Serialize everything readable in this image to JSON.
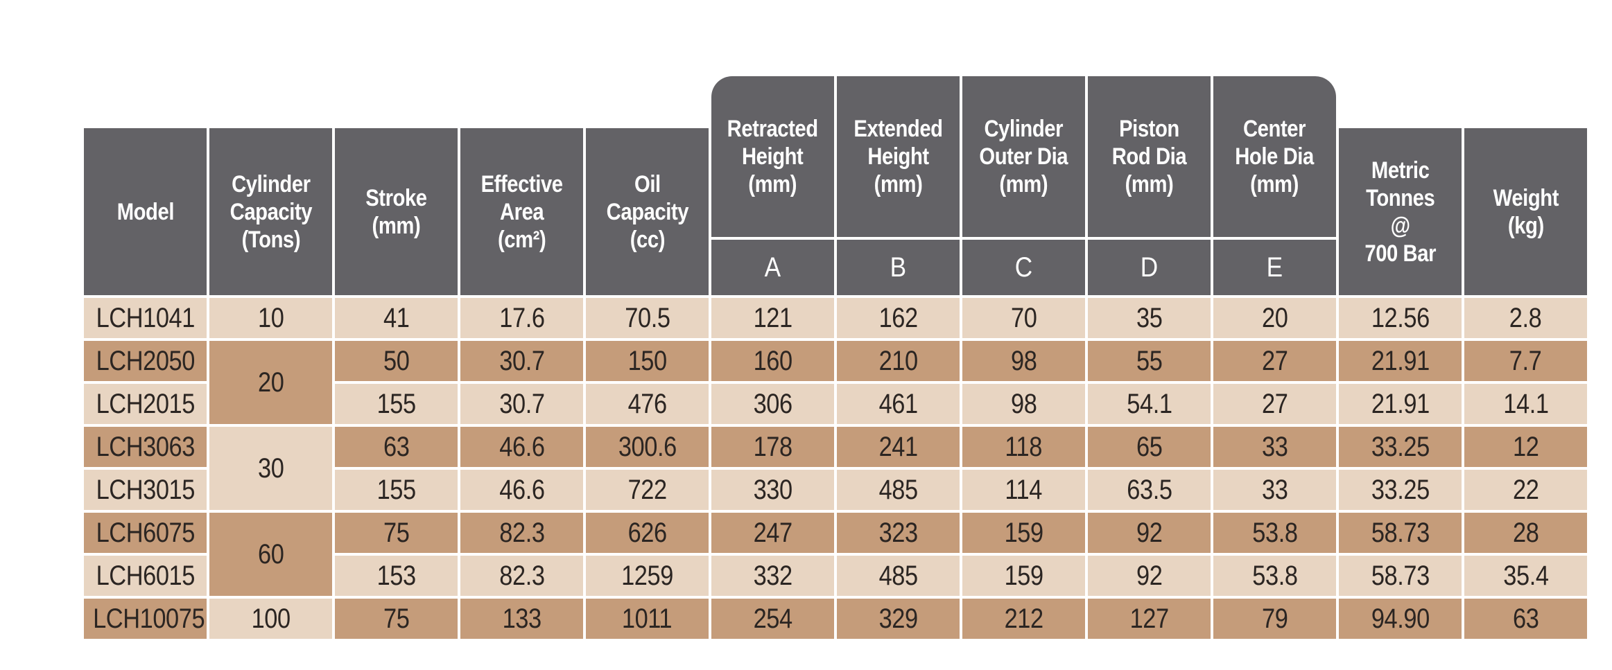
{
  "page": {
    "background": "#ffffff"
  },
  "colors": {
    "header_grey": "#636266",
    "row_light": "#e8d5c2",
    "row_dark": "#c59c7a",
    "grid_white": "#ffffff",
    "text_dark": "#2b2522",
    "header_text": "#ffffff"
  },
  "table": {
    "columns": [
      {
        "id": "model",
        "label": "Model"
      },
      {
        "id": "capacity",
        "label": "Cylinder\nCapacity\n(Tons)"
      },
      {
        "id": "stroke",
        "label": "Stroke\n(mm)"
      },
      {
        "id": "area",
        "label": "Effective\nArea\n(cm²)"
      },
      {
        "id": "oil",
        "label": "Oil\nCapacity\n(cc)"
      },
      {
        "id": "retracted",
        "label": "Retracted\nHeight\n(mm)",
        "sub": "A"
      },
      {
        "id": "extended",
        "label": "Extended\nHeight\n(mm)",
        "sub": "B"
      },
      {
        "id": "cyl_outer",
        "label": "Cylinder\nOuter Dia\n(mm)",
        "sub": "C"
      },
      {
        "id": "piston_rod",
        "label": "Piston\nRod Dia\n(mm)",
        "sub": "D"
      },
      {
        "id": "center_hole",
        "label": "Center\nHole Dia\n(mm)",
        "sub": "E"
      },
      {
        "id": "tonnes",
        "label": "Metric\nTonnes\n@\n700 Bar"
      },
      {
        "id": "weight",
        "label": "Weight\n(kg)"
      }
    ],
    "rows": [
      {
        "model": "LCH1041",
        "capacity": "10",
        "stroke": "41",
        "area": "17.6",
        "oil": "70.5",
        "a": "121",
        "b": "162",
        "c": "70",
        "d": "35",
        "e": "20",
        "tonnes": "12.56",
        "weight": "2.8"
      },
      {
        "model": "LCH2050",
        "capacity": "20",
        "stroke": "50",
        "area": "30.7",
        "oil": "150",
        "a": "160",
        "b": "210",
        "c": "98",
        "d": "55",
        "e": "27",
        "tonnes": "21.91",
        "weight": "7.7"
      },
      {
        "model": "LCH2015",
        "stroke": "155",
        "area": "30.7",
        "oil": "476",
        "a": "306",
        "b": "461",
        "c": "98",
        "d": "54.1",
        "e": "27",
        "tonnes": "21.91",
        "weight": "14.1"
      },
      {
        "model": "LCH3063",
        "capacity": "30",
        "stroke": "63",
        "area": "46.6",
        "oil": "300.6",
        "a": "178",
        "b": "241",
        "c": "118",
        "d": "65",
        "e": "33",
        "tonnes": "33.25",
        "weight": "12"
      },
      {
        "model": "LCH3015",
        "stroke": "155",
        "area": "46.6",
        "oil": "722",
        "a": "330",
        "b": "485",
        "c": "114",
        "d": "63.5",
        "e": "33",
        "tonnes": "33.25",
        "weight": "22"
      },
      {
        "model": "LCH6075",
        "capacity": "60",
        "stroke": "75",
        "area": "82.3",
        "oil": "626",
        "a": "247",
        "b": "323",
        "c": "159",
        "d": "92",
        "e": "53.8",
        "tonnes": "58.73",
        "weight": "28"
      },
      {
        "model": "LCH6015",
        "stroke": "153",
        "area": "82.3",
        "oil": "1259",
        "a": "332",
        "b": "485",
        "c": "159",
        "d": "92",
        "e": "53.8",
        "tonnes": "58.73",
        "weight": "35.4"
      },
      {
        "model": "LCH10075",
        "capacity": "100",
        "stroke": "75",
        "area": "133",
        "oil": "1011",
        "a": "254",
        "b": "329",
        "c": "212",
        "d": "127",
        "e": "79",
        "tonnes": "94.90",
        "weight": "63"
      }
    ]
  }
}
